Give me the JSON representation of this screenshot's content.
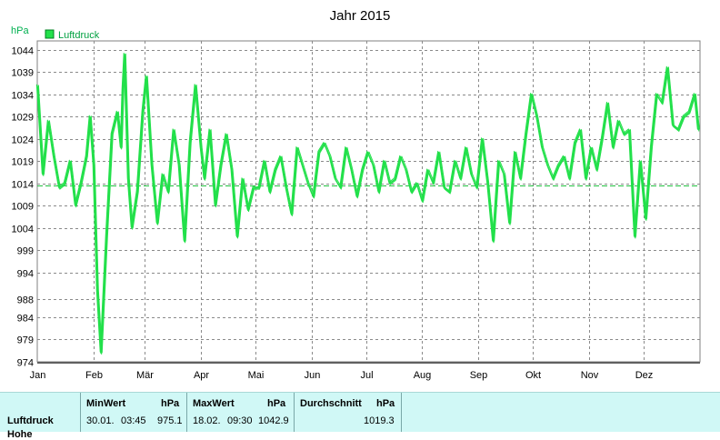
{
  "chart_data": {
    "type": "line",
    "title": "Jahr 2015",
    "ylabel": "hPa",
    "legend": "Luftdruck",
    "legend_placement": "top-left",
    "grid": true,
    "ylim": [
      974,
      1046
    ],
    "yticks": [
      974,
      979,
      984,
      988,
      994,
      999,
      1004,
      1009,
      1014,
      1019,
      1024,
      1029,
      1034,
      1039,
      1044
    ],
    "xticks": [
      "Jan",
      "Feb",
      "Mär",
      "Apr",
      "Mai",
      "Jun",
      "Jul",
      "Aug",
      "Sep",
      "Okt",
      "Nov",
      "Dez"
    ],
    "average_line": 1013.5,
    "colors": {
      "series": "#22e04a",
      "average": "#22c040",
      "grid": "#8a8a8a"
    },
    "series": [
      {
        "name": "Luftdruck",
        "x": [
          0,
          3,
          6,
          9,
          12,
          15,
          18,
          21,
          24,
          27,
          29,
          31,
          33,
          35,
          38,
          41,
          44,
          46,
          47,
          48,
          50,
          52,
          55,
          58,
          60,
          63,
          66,
          69,
          72,
          75,
          78,
          81,
          84,
          87,
          90,
          92,
          95,
          98,
          101,
          104,
          107,
          110,
          113,
          116,
          119,
          122,
          125,
          128,
          131,
          134,
          137,
          140,
          143,
          146,
          149,
          152,
          155,
          158,
          161,
          164,
          167,
          170,
          173,
          176,
          179,
          182,
          185,
          188,
          191,
          194,
          197,
          200,
          203,
          206,
          209,
          212,
          215,
          218,
          221,
          224,
          227,
          230,
          233,
          236,
          239,
          242,
          245,
          248,
          251,
          254,
          257,
          260,
          263,
          266,
          269,
          272,
          275,
          278,
          281,
          284,
          287,
          290,
          293,
          296,
          299,
          302,
          305,
          308,
          311,
          314,
          317,
          320,
          323,
          326,
          329,
          332,
          335,
          338,
          341,
          344,
          347,
          350,
          353,
          356,
          359,
          362,
          364
        ],
        "y": [
          1036,
          1016,
          1028,
          1020,
          1013,
          1014,
          1019,
          1009,
          1014,
          1020,
          1029,
          1018,
          990,
          976,
          1002,
          1025,
          1030,
          1022,
          1035,
          1043,
          1015,
          1004,
          1012,
          1030,
          1038,
          1018,
          1005,
          1016,
          1012,
          1026,
          1018,
          1001,
          1023,
          1036,
          1022,
          1015,
          1026,
          1009,
          1018,
          1025,
          1017,
          1002,
          1015,
          1008,
          1013,
          1013,
          1019,
          1012,
          1017,
          1020,
          1013,
          1007,
          1022,
          1018,
          1014,
          1011,
          1021,
          1023,
          1020,
          1015,
          1013,
          1022,
          1017,
          1011,
          1017,
          1021,
          1018,
          1012,
          1019,
          1014,
          1015,
          1020,
          1017,
          1012,
          1014,
          1010,
          1017,
          1014,
          1021,
          1013,
          1012,
          1019,
          1015,
          1022,
          1016,
          1013,
          1024,
          1014,
          1001,
          1019,
          1016,
          1005,
          1021,
          1015,
          1025,
          1034,
          1029,
          1022,
          1018,
          1015,
          1018,
          1020,
          1015,
          1023,
          1026,
          1015,
          1022,
          1017,
          1024,
          1032,
          1022,
          1028,
          1025,
          1026,
          1002,
          1019,
          1006,
          1022,
          1034,
          1032,
          1040,
          1027,
          1026,
          1029,
          1030,
          1034,
          1026
        ]
      }
    ]
  },
  "stats": {
    "row_label": "Luftdruck",
    "row_label_2": "Hohe",
    "min": {
      "header": "MinWert",
      "unit": "hPa",
      "date": "30.01.",
      "time": "03:45",
      "value": "975.1"
    },
    "max": {
      "header": "MaxWert",
      "unit": "hPa",
      "date": "18.02.",
      "time": "09:30",
      "value": "1042.9"
    },
    "avg": {
      "header": "Durchschnitt",
      "unit": "hPa",
      "value": "1019.3"
    }
  }
}
